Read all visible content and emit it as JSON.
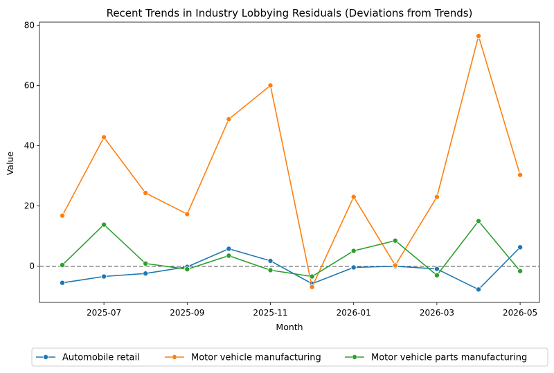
{
  "chart_data": {
    "type": "line",
    "title": "Recent Trends in Industry Lobbying Residuals (Deviations from Trends)",
    "xlabel": "Month",
    "ylabel": "Value",
    "x": [
      "2025-06",
      "2025-07",
      "2025-08",
      "2025-09",
      "2025-10",
      "2025-11",
      "2025-12",
      "2026-01",
      "2026-02",
      "2026-03",
      "2026-04",
      "2026-05"
    ],
    "x_ticks": [
      "2025-07",
      "2025-09",
      "2025-11",
      "2026-01",
      "2026-03",
      "2026-05"
    ],
    "y_ticks": [
      0,
      20,
      40,
      60,
      80
    ],
    "ylim": [
      -12,
      81
    ],
    "reference_line": {
      "y": 0,
      "style": "dashed",
      "color": "#808080"
    },
    "legend_position": "bottom-center, outside",
    "grid": false,
    "series": [
      {
        "name": "Automobile retail",
        "color": "#1f77b4",
        "values": [
          -5.5,
          -3.4,
          -2.4,
          -0.2,
          5.8,
          1.8,
          -5.8,
          -0.4,
          0.0,
          -0.9,
          -7.7,
          6.3
        ]
      },
      {
        "name": "Motor vehicle manufacturing",
        "color": "#ff7f0e",
        "values": [
          16.8,
          42.8,
          24.3,
          17.3,
          48.8,
          60.0,
          -6.9,
          23.0,
          0.3,
          23.0,
          76.4,
          30.3
        ]
      },
      {
        "name": "Motor vehicle parts manufacturing",
        "color": "#2ca02c",
        "values": [
          0.4,
          13.8,
          0.9,
          -1.0,
          3.5,
          -1.3,
          -3.4,
          5.1,
          8.5,
          -3.0,
          15.0,
          -1.6
        ]
      }
    ]
  }
}
